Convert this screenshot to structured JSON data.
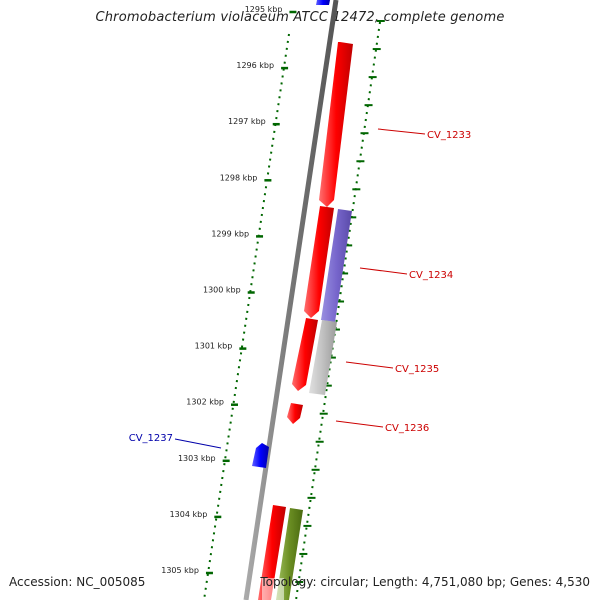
{
  "title": "Chromobacterium violaceum ATCC 12472, complete genome",
  "accession_text": "Accession: NC_005085",
  "topology_text": "Topology: circular; Length: 4,751,080 bp; Genes: 4,530",
  "ruler": {
    "labels": [
      "1295 kbp",
      "1296 kbp",
      "1297 kbp",
      "1298 kbp",
      "1299 kbp",
      "1300 kbp",
      "1301 kbp",
      "1302 kbp",
      "1303 kbp",
      "1304 kbp",
      "1305 kbp"
    ]
  },
  "genes": [
    {
      "name": "CV_1233",
      "strand": "+",
      "color": "#cc0000"
    },
    {
      "name": "CV_1234",
      "strand": "+",
      "color": "#cc0000"
    },
    {
      "name": "CV_1235",
      "strand": "+",
      "color": "#cc0000"
    },
    {
      "name": "CV_1236",
      "strand": "+",
      "color": "#cc0000"
    },
    {
      "name": "CV_1237",
      "strand": "-",
      "color": "#0000aa"
    }
  ],
  "colors": {
    "forward_gene": "#ff0000",
    "reverse_gene": "#0000ff",
    "purple_feature": "#7766cc",
    "gray_feature": "#bbbbbb",
    "olive_feature": "#6b8e23",
    "ruler_ticks": "#006600",
    "backbone": "#777777"
  }
}
